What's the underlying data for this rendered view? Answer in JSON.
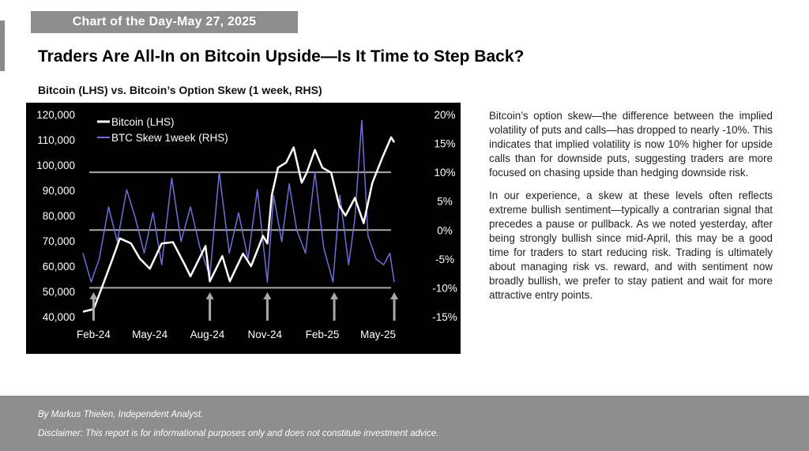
{
  "banner": "Chart of the Day-May 27, 2025",
  "headline": "Traders Are All-In on Bitcoin Upside—Is It Time to Step Back?",
  "chart_caption": "Bitcoin (LHS) vs. Bitcoin’s Option Skew (1 week, RHS)",
  "commentary": [
    "Bitcoin’s option skew—the difference between the implied volatility of puts and calls—has dropped to nearly -10%. This indicates that implied volatility is now 10% higher for upside calls than for downside puts, suggesting traders are more focused on chasing upside than hedging downside risk.",
    "In our experience, a skew at these levels often reflects extreme bullish sentiment—typically a contrarian signal that precedes a pause or pullback. As we noted yesterday, after being strongly bullish since mid-April, this may be a good time for traders to start reducing risk. Trading is ultimately about managing risk vs. reward, and with sentiment now broadly bullish, we prefer to stay patient and wait for more attractive entry points."
  ],
  "footer": {
    "author": "By Markus Thielen, Independent Analyst.",
    "disclaimer": "Disclaimer: This report is for informational purposes only and does not constitute investment advice."
  },
  "chart_data": {
    "type": "line",
    "x_ticks": [
      "Feb-24",
      "May-24",
      "Aug-24",
      "Nov-24",
      "Feb-25",
      "May-25"
    ],
    "y_left": {
      "range": [
        40000,
        120000
      ],
      "ticks": [
        "40,000",
        "50,000",
        "60,000",
        "70,000",
        "80,000",
        "90,000",
        "100,000",
        "110,000",
        "120,000"
      ]
    },
    "y_right": {
      "range": [
        -15,
        20
      ],
      "ticks": [
        "-15%",
        "-10%",
        "-5%",
        "0%",
        "5%",
        "10%",
        "15%",
        "20%"
      ]
    },
    "legend_position": "top-left",
    "reference_lines_right_axis": [
      10,
      0,
      -10
    ],
    "signal_arrows": [
      "Feb-24",
      "Aug-24",
      "Nov-24",
      "Feb-25",
      "May-25"
    ],
    "series": [
      {
        "name": "Bitcoin (LHS)",
        "axis": "left",
        "color": "#ffffff",
        "x": [
          "2024-01-15",
          "2024-02-01",
          "2024-02-15",
          "2024-03-01",
          "2024-03-14",
          "2024-04-01",
          "2024-04-15",
          "2024-05-01",
          "2024-05-20",
          "2024-06-07",
          "2024-06-25",
          "2024-07-05",
          "2024-07-29",
          "2024-08-05",
          "2024-08-25",
          "2024-09-06",
          "2024-09-27",
          "2024-10-10",
          "2024-10-29",
          "2024-11-05",
          "2024-11-12",
          "2024-11-22",
          "2024-12-05",
          "2024-12-17",
          "2024-12-30",
          "2025-01-07",
          "2025-01-20",
          "2025-02-01",
          "2025-02-15",
          "2025-02-28",
          "2025-03-10",
          "2025-03-25",
          "2025-04-08",
          "2025-04-22",
          "2025-05-08",
          "2025-05-22",
          "2025-05-27"
        ],
        "values": [
          42000,
          43000,
          52000,
          62000,
          71000,
          69000,
          63000,
          59000,
          69000,
          69500,
          61000,
          56000,
          68000,
          54000,
          64000,
          54000,
          65000,
          60000,
          72000,
          69000,
          88000,
          99000,
          101000,
          107000,
          93000,
          97000,
          106000,
          99000,
          97000,
          84000,
          80000,
          87000,
          77000,
          93000,
          103000,
          111000,
          109000
        ]
      },
      {
        "name": "BTC Skew 1week (RHS)",
        "axis": "right",
        "color": "#6f6fd8",
        "x": [
          "2024-01-15",
          "2024-01-28",
          "2024-02-10",
          "2024-02-25",
          "2024-03-10",
          "2024-03-25",
          "2024-04-08",
          "2024-04-22",
          "2024-05-06",
          "2024-05-20",
          "2024-06-05",
          "2024-06-20",
          "2024-07-05",
          "2024-07-20",
          "2024-08-05",
          "2024-08-20",
          "2024-09-05",
          "2024-09-20",
          "2024-10-05",
          "2024-10-20",
          "2024-11-05",
          "2024-11-15",
          "2024-11-28",
          "2024-12-10",
          "2024-12-22",
          "2025-01-05",
          "2025-01-20",
          "2025-02-03",
          "2025-02-18",
          "2025-03-01",
          "2025-03-15",
          "2025-03-25",
          "2025-04-05",
          "2025-04-15",
          "2025-04-28",
          "2025-05-10",
          "2025-05-20",
          "2025-05-27"
        ],
        "values": [
          -4,
          -9,
          -5,
          4,
          -2,
          7,
          2,
          -4,
          3,
          -6,
          9,
          -2,
          4,
          -3,
          -8,
          10,
          -4,
          3,
          -5,
          7,
          -9,
          6,
          -2,
          8,
          0,
          -4,
          10,
          -3,
          -9,
          6,
          -6,
          2,
          19,
          -1,
          -5,
          -6,
          -4,
          -9
        ]
      }
    ]
  }
}
